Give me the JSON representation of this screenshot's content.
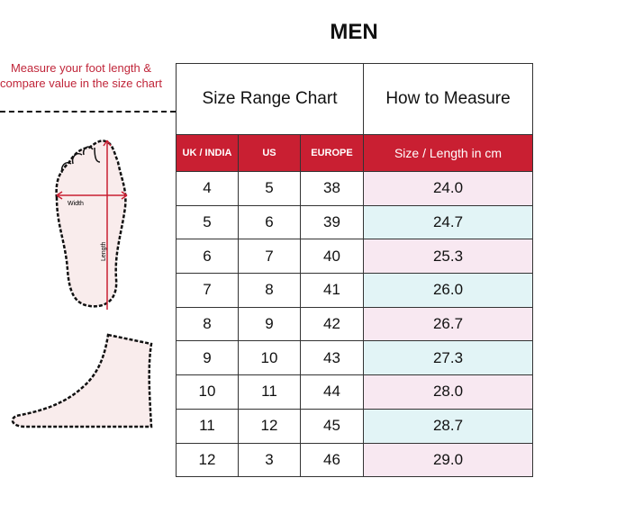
{
  "title": "MEN",
  "note": "Measure your foot length & compare value in the size chart",
  "diagram": {
    "width_label": "Width",
    "length_label": "Length"
  },
  "header": {
    "size_range": "Size Range Chart",
    "how_to": "How to Measure"
  },
  "columns": [
    "UK / INDIA",
    "US",
    "EUROPE",
    "Size / Length in cm"
  ],
  "rows": [
    [
      "4",
      "5",
      "38",
      "24.0"
    ],
    [
      "5",
      "6",
      "39",
      "24.7"
    ],
    [
      "6",
      "7",
      "40",
      "25.3"
    ],
    [
      "7",
      "8",
      "41",
      "26.0"
    ],
    [
      "8",
      "9",
      "42",
      "26.7"
    ],
    [
      "9",
      "10",
      "43",
      "27.3"
    ],
    [
      "10",
      "11",
      "44",
      "28.0"
    ],
    [
      "11",
      "12",
      "45",
      "28.7"
    ],
    [
      "12",
      "3",
      "46",
      "29.0"
    ]
  ],
  "colors": {
    "accent": "#c91f32",
    "pink": "#f8e8f1",
    "cyan": "#e2f4f6"
  }
}
